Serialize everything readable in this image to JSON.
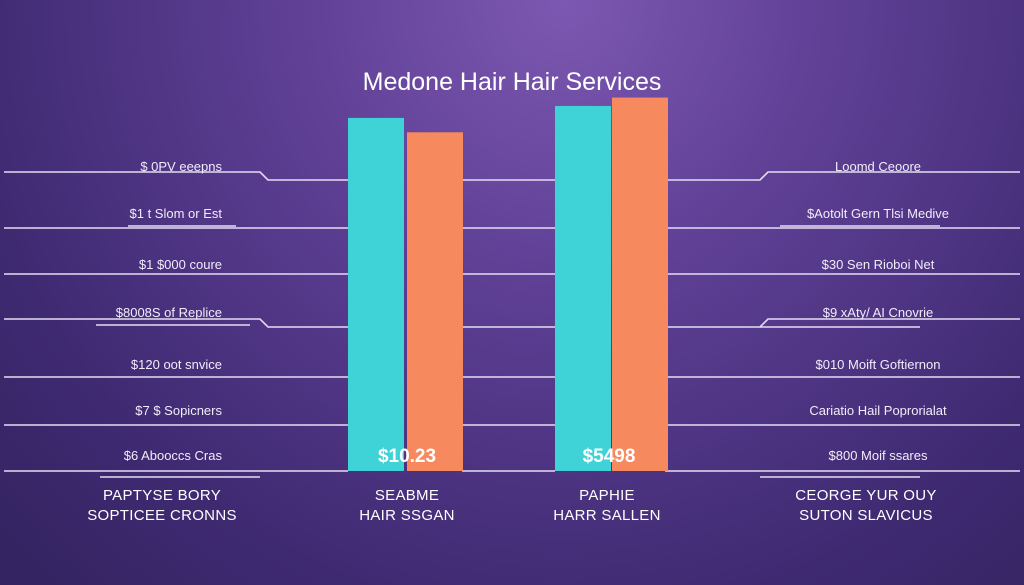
{
  "chart_data": {
    "type": "bar",
    "title": "Medone Hair Hair Services",
    "categories": [
      [
        "SEABME",
        "HAIR SSGAN"
      ],
      [
        "PAPHIE",
        "HARR SALLEN"
      ]
    ],
    "series": [
      {
        "color": "#3fd3d7",
        "values": [
          295,
          305
        ]
      },
      {
        "color": "#f7895e",
        "values": [
          283,
          312
        ]
      }
    ],
    "data_labels": [
      "$10.23",
      "$5498"
    ],
    "ylim": [
      0,
      320
    ],
    "left_labels": [
      "$ 0PV eeepns",
      "$1 t Slom or Est",
      "$1 $000 coure",
      "$8008S of Replice",
      "$120 oot snvice",
      "$7 $ Sopicners",
      "$6 Abooccs Cras"
    ],
    "right_labels": [
      "Loomd Ceoore",
      "$Aotolt Gern Tlsi Medive",
      "$30 Sen Rioboi Net",
      "$9 xAty/ AI Cnovrie",
      "$010 Moift Goftiernon",
      "Cariatio Hail Poprorialat",
      "$800 Moif ssares"
    ],
    "left_group": [
      "PAPTYSE BORY",
      "SOPTICEE CRONNS"
    ],
    "right_group": [
      "CEORGE YUR OUY",
      "SUTON SLAVICUS"
    ],
    "colors": {
      "line": "#e4ddf2"
    }
  }
}
